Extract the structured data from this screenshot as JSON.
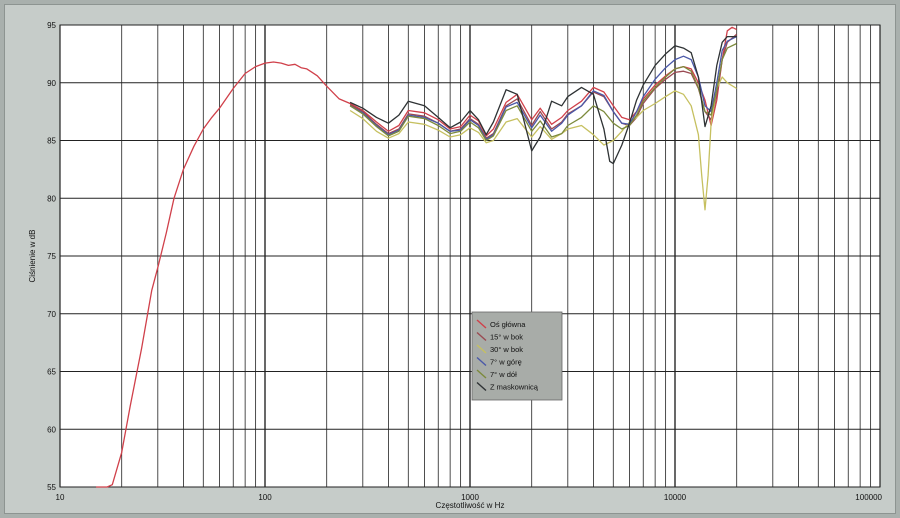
{
  "chart_data": {
    "type": "line",
    "title": "",
    "xlabel": "Częstotliwość w Hz",
    "ylabel": "Ciśnienie w dB",
    "xscale": "log",
    "xlim": [
      10,
      100000
    ],
    "ylim": [
      55,
      95
    ],
    "grid": true,
    "legend_position": "center",
    "x_tick_labels": [
      "10",
      "100",
      "1000",
      "10000",
      "100000"
    ],
    "y_tick_labels": [
      "55",
      "60",
      "65",
      "70",
      "75",
      "80",
      "85",
      "90",
      "95"
    ],
    "series": [
      {
        "name": "Oś główna",
        "color": "#d0404a",
        "x": [
          15,
          17,
          18,
          20,
          22,
          25,
          28,
          30,
          33,
          36,
          40,
          45,
          50,
          55,
          60,
          70,
          80,
          90,
          100,
          110,
          120,
          130,
          140,
          150,
          160,
          170,
          180,
          200,
          230,
          260,
          300,
          350,
          400,
          450,
          500,
          600,
          700,
          800,
          900,
          1000,
          1100,
          1200,
          1300,
          1500,
          1700,
          2000,
          2200,
          2500,
          2800,
          3000,
          3500,
          4000,
          4500,
          5000,
          5500,
          6000,
          6500,
          7000,
          8000,
          9000,
          10000,
          11000,
          12000,
          13000,
          14000,
          15000,
          16000,
          17000,
          18000,
          19000,
          20000
        ],
        "y": [
          55,
          55,
          55.2,
          58,
          62,
          67,
          72,
          74,
          77,
          80,
          82.5,
          84.5,
          86,
          87,
          87.8,
          89.5,
          90.8,
          91.4,
          91.7,
          91.8,
          91.7,
          91.5,
          91.6,
          91.3,
          91.2,
          90.9,
          90.6,
          89.7,
          88.6,
          88.2,
          87.6,
          86.6,
          85.8,
          86.3,
          87.6,
          87.4,
          86.8,
          86.0,
          86.2,
          87.2,
          86.7,
          85.4,
          86.0,
          88.3,
          89.0,
          86.8,
          87.8,
          86.4,
          87.0,
          87.6,
          88.4,
          89.6,
          89.2,
          88.0,
          87.0,
          86.8,
          87.5,
          88.6,
          89.8,
          90.6,
          91.2,
          91.4,
          91.2,
          90.0,
          88.5,
          86.3,
          88.5,
          92.0,
          94.5,
          94.8,
          94.6
        ]
      },
      {
        "name": "15° w bok",
        "color": "#9a4a52",
        "x": [
          260,
          300,
          350,
          400,
          450,
          500,
          600,
          700,
          800,
          900,
          1000,
          1100,
          1200,
          1300,
          1500,
          1700,
          2000,
          2200,
          2500,
          2800,
          3000,
          3500,
          4000,
          4500,
          5000,
          5500,
          6000,
          6500,
          7000,
          8000,
          9000,
          10000,
          11000,
          12000,
          13000,
          14000,
          15000,
          16000,
          17000,
          18000,
          20000
        ],
        "y": [
          88.1,
          87.5,
          86.4,
          85.6,
          86.0,
          87.3,
          87.1,
          86.5,
          85.8,
          86.0,
          86.9,
          86.4,
          85.2,
          85.6,
          88.0,
          88.6,
          86.3,
          87.5,
          86.0,
          86.6,
          87.3,
          88.0,
          89.2,
          88.8,
          87.5,
          86.5,
          86.3,
          87.0,
          88.2,
          89.5,
          90.3,
          90.9,
          91.0,
          90.8,
          89.5,
          87.5,
          86.8,
          89.0,
          92.0,
          93.5,
          94.2
        ]
      },
      {
        "name": "30° w bok",
        "color": "#c6c060",
        "x": [
          260,
          300,
          350,
          400,
          450,
          500,
          600,
          700,
          800,
          900,
          1000,
          1100,
          1200,
          1300,
          1500,
          1700,
          2000,
          2200,
          2500,
          2800,
          3000,
          3500,
          4000,
          4500,
          5000,
          5500,
          6000,
          6500,
          7000,
          8000,
          9000,
          10000,
          11000,
          12000,
          13000,
          13500,
          14000,
          14500,
          15000,
          16000,
          17000,
          18000,
          20000
        ],
        "y": [
          87.6,
          86.9,
          85.8,
          85.2,
          85.6,
          86.6,
          86.4,
          85.9,
          85.3,
          85.5,
          86.1,
          85.7,
          84.8,
          85.0,
          86.6,
          86.9,
          85.3,
          86.2,
          85.1,
          85.6,
          86.0,
          86.3,
          85.5,
          84.6,
          85.0,
          85.8,
          86.6,
          87.0,
          87.6,
          88.2,
          88.8,
          89.3,
          89.0,
          88.0,
          85.5,
          82.0,
          79.0,
          82.0,
          86.5,
          89.5,
          90.5,
          90.0,
          89.5
        ]
      },
      {
        "name": "7° w górę",
        "color": "#4a58a8",
        "x": [
          260,
          300,
          350,
          400,
          450,
          500,
          600,
          700,
          800,
          900,
          1000,
          1100,
          1200,
          1300,
          1500,
          1700,
          2000,
          2200,
          2500,
          2800,
          3000,
          3500,
          4000,
          4500,
          5000,
          5500,
          6000,
          6500,
          7000,
          8000,
          9000,
          10000,
          11000,
          12000,
          13000,
          14000,
          15000,
          16000,
          17000,
          18000,
          20000
        ],
        "y": [
          88.0,
          87.4,
          86.3,
          85.5,
          85.9,
          87.2,
          87.0,
          86.5,
          85.8,
          85.9,
          86.8,
          86.3,
          85.1,
          85.5,
          87.9,
          88.3,
          86.1,
          87.2,
          85.8,
          86.5,
          87.2,
          88.0,
          89.3,
          88.9,
          87.5,
          86.5,
          86.4,
          87.5,
          88.8,
          90.3,
          91.3,
          92.0,
          92.3,
          92.0,
          90.5,
          88.0,
          87.5,
          90.0,
          92.8,
          93.6,
          94.0
        ]
      },
      {
        "name": "7° w dół",
        "color": "#7c8a3c",
        "x": [
          260,
          300,
          350,
          400,
          450,
          500,
          600,
          700,
          800,
          900,
          1000,
          1100,
          1200,
          1300,
          1500,
          1700,
          2000,
          2200,
          2500,
          2800,
          3000,
          3500,
          4000,
          4500,
          5000,
          5500,
          6000,
          6500,
          7000,
          8000,
          9000,
          10000,
          11000,
          12000,
          13000,
          14000,
          15000,
          16000,
          17000,
          18000,
          20000
        ],
        "y": [
          88.0,
          87.3,
          86.2,
          85.4,
          85.8,
          87.1,
          86.9,
          86.3,
          85.6,
          85.8,
          86.6,
          86.1,
          85.0,
          85.4,
          87.6,
          88.0,
          85.8,
          86.7,
          85.3,
          85.6,
          86.3,
          87.0,
          88.0,
          87.5,
          86.5,
          86.0,
          86.3,
          87.2,
          88.4,
          89.6,
          90.5,
          91.2,
          91.4,
          91.0,
          89.6,
          87.5,
          87.2,
          89.4,
          92.0,
          93.0,
          93.4
        ]
      },
      {
        "name": "Z maskownicą",
        "color": "#2e3234",
        "x": [
          260,
          300,
          350,
          400,
          450,
          500,
          600,
          700,
          800,
          900,
          1000,
          1100,
          1200,
          1300,
          1500,
          1700,
          2000,
          2200,
          2500,
          2800,
          3000,
          3500,
          4000,
          4500,
          4800,
          5000,
          5500,
          6000,
          6500,
          7000,
          8000,
          9000,
          10000,
          11000,
          12000,
          13000,
          14000,
          15000,
          16000,
          17000,
          18000,
          20000
        ],
        "y": [
          88.3,
          87.8,
          87.0,
          86.5,
          87.2,
          88.4,
          88.0,
          87.0,
          86.1,
          86.6,
          87.6,
          86.8,
          85.5,
          86.6,
          89.4,
          89.0,
          84.1,
          85.3,
          88.4,
          88.0,
          88.8,
          89.6,
          89.0,
          86.0,
          83.2,
          83.0,
          84.6,
          86.5,
          88.5,
          89.8,
          91.5,
          92.5,
          93.2,
          93.0,
          92.6,
          90.5,
          86.2,
          88.0,
          91.5,
          93.5,
          94.0,
          94.0
        ]
      }
    ]
  }
}
